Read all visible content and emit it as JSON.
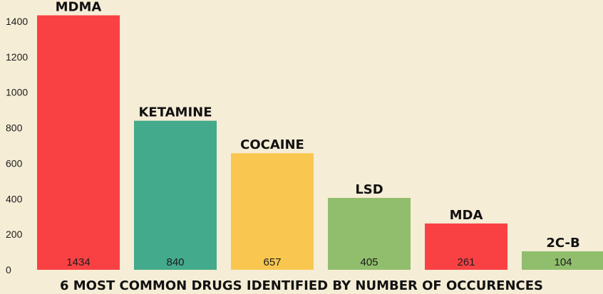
{
  "chart_data": {
    "type": "bar",
    "title": "6 MOST COMMON DRUGS IDENTIFIED BY NUMBER OF OCCURENCES",
    "xlabel": "",
    "ylabel": "",
    "categories": [
      "MDMA",
      "KETAMINE",
      "COCAINE",
      "LSD",
      "MDA",
      "2C-B"
    ],
    "values": [
      1434,
      840,
      657,
      405,
      261,
      104
    ],
    "value_labels": [
      "1434",
      "840",
      "657",
      "405",
      "261",
      "104"
    ],
    "colors": [
      "#f94144",
      "#43aa8b",
      "#f9c74f",
      "#90be6d",
      "#f94144",
      "#90be6d"
    ],
    "ylim": [
      0,
      1400
    ],
    "yticks": [
      0,
      200,
      400,
      600,
      800,
      1000,
      1200,
      1400
    ],
    "ytick_labels": [
      "0",
      "200",
      "400",
      "600",
      "800",
      "1000",
      "1200",
      "1400"
    ],
    "grid": false,
    "legend": "none",
    "background": "#f6edd6"
  }
}
